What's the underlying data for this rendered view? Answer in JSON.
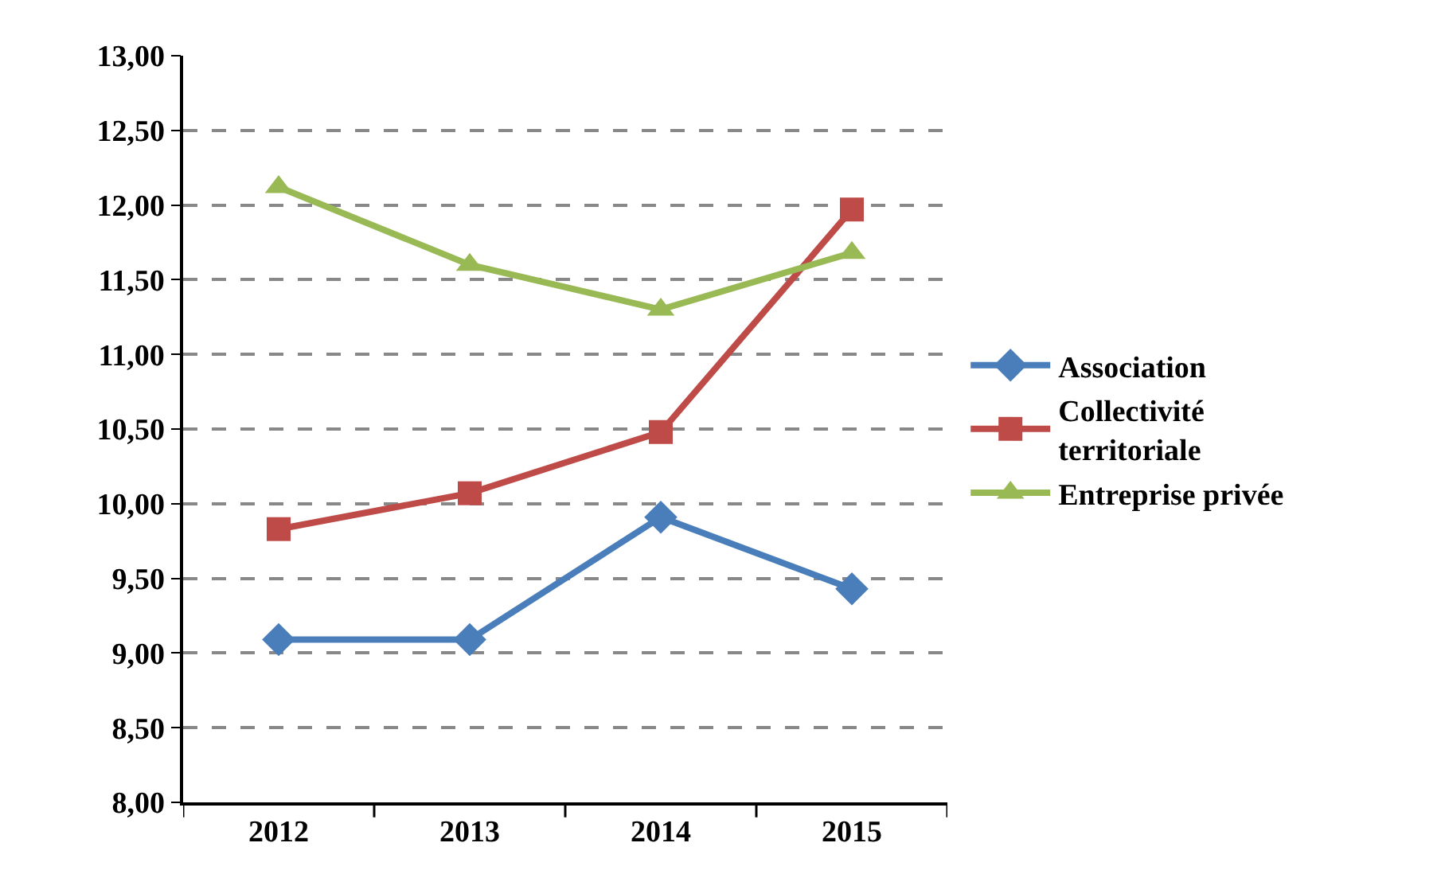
{
  "chart_data": {
    "type": "line",
    "categories": [
      "2012",
      "2013",
      "2014",
      "2015"
    ],
    "series": [
      {
        "name": "Association",
        "color": "#4a7ebb",
        "marker": "diamond",
        "values": [
          9.09,
          9.09,
          9.91,
          9.43
        ]
      },
      {
        "name": "Collectivité\nterritoriale",
        "color": "#be4b48",
        "marker": "square",
        "values": [
          9.83,
          10.07,
          10.48,
          11.97
        ]
      },
      {
        "name": "Entreprise privée",
        "color": "#98b954",
        "marker": "triangle",
        "values": [
          12.12,
          11.6,
          11.3,
          11.68
        ]
      }
    ],
    "ylim": [
      8,
      13
    ],
    "yticks": [
      {
        "value": 8,
        "label": "8,00"
      },
      {
        "value": 8.5,
        "label": "8,50"
      },
      {
        "value": 9,
        "label": "9,00"
      },
      {
        "value": 9.5,
        "label": "9,50"
      },
      {
        "value": 10,
        "label": "10,00"
      },
      {
        "value": 10.5,
        "label": "10,50"
      },
      {
        "value": 11,
        "label": "11,00"
      },
      {
        "value": 11.5,
        "label": "11,50"
      },
      {
        "value": 12,
        "label": "12,00"
      },
      {
        "value": 12.5,
        "label": "12,50"
      },
      {
        "value": 13,
        "label": "13,00"
      }
    ],
    "grid": "y",
    "legend": "right",
    "line_style": "solid"
  }
}
